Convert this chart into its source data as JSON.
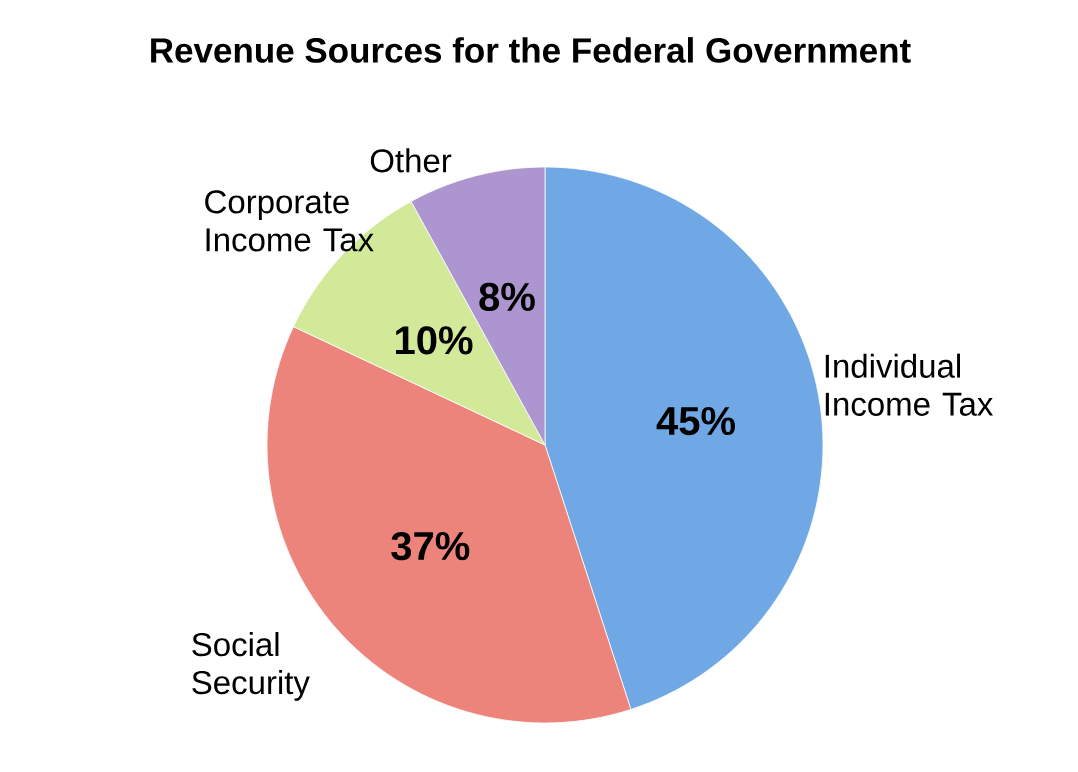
{
  "chart_data": {
    "type": "pie",
    "title": "Revenue Sources for the Federal Government",
    "categories": [
      "Individual Income Tax",
      "Social Security",
      "Corporate Income Tax",
      "Other"
    ],
    "values": [
      45,
      37,
      10,
      8
    ],
    "value_labels": [
      "45%",
      "37%",
      "10%",
      "8%"
    ],
    "colors": [
      "#6fa8e4",
      "#ec847c",
      "#d2e99a",
      "#ad96cf"
    ]
  }
}
